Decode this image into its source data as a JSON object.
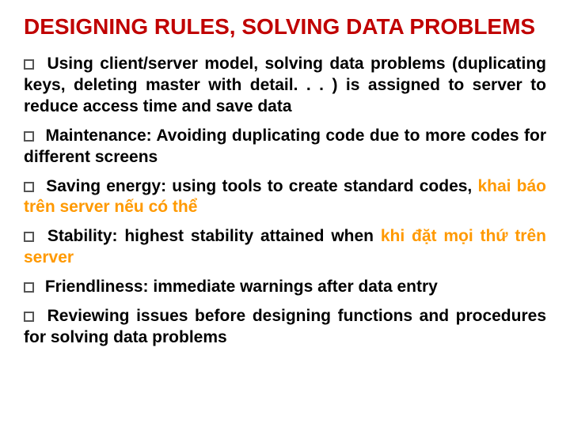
{
  "title": {
    "text": "DESIGNING RULES, SOLVING DATA PROBLEMS",
    "color": "#c00000",
    "fontsize": 28
  },
  "body_fontsize": 21,
  "text_color_black": "#000000",
  "text_color_accent": "#ff9900",
  "items": [
    {
      "segments": [
        {
          "text": "Using client/server model, solving data problems (duplicating keys, deleting master with detail. . . ) is assigned to server to reduce access time and save data",
          "accent": false
        }
      ]
    },
    {
      "segments": [
        {
          "text": "Maintenance: Avoiding duplicating code due to more codes for different screens",
          "accent": false
        }
      ]
    },
    {
      "segments": [
        {
          "text": "Saving energy: using tools to create standard codes, ",
          "accent": false
        },
        {
          "text": "khai báo trên server nếu có thể",
          "accent": true
        }
      ]
    },
    {
      "segments": [
        {
          "text": "Stability: highest stability attained when ",
          "accent": false
        },
        {
          "text": "khi đặt mọi thứ trên server",
          "accent": true
        }
      ]
    },
    {
      "segments": [
        {
          "text": "Friendliness: immediate warnings after data entry",
          "accent": false
        }
      ]
    },
    {
      "segments": [
        {
          "text": "Reviewing issues before designing functions and procedures for solving data problems",
          "accent": false
        }
      ]
    }
  ]
}
